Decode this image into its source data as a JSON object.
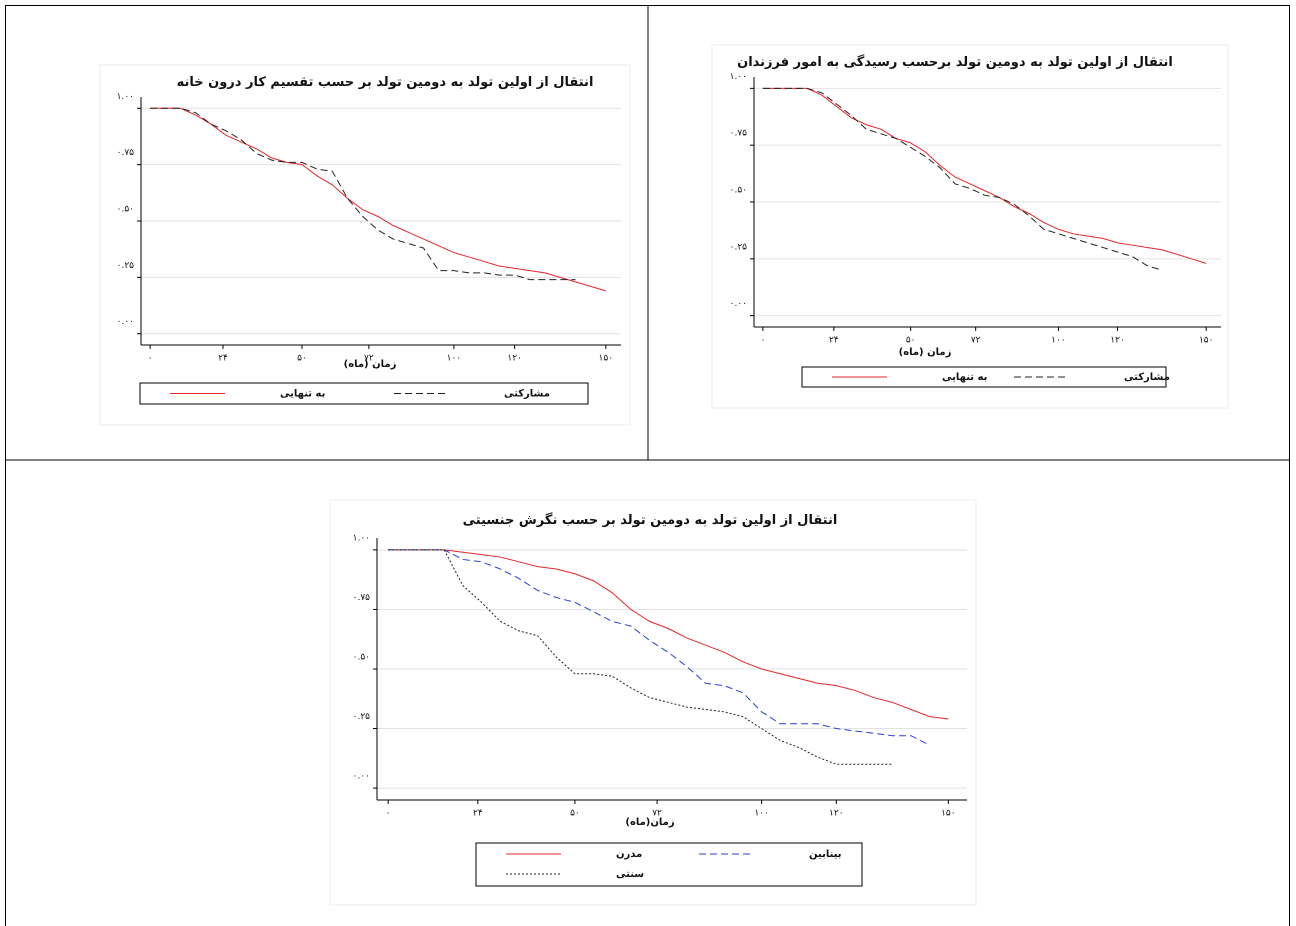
{
  "chart_data": [
    {
      "type": "line",
      "title": "انتقال از اولین تولد به دومین تولد بر حسب تقسیم کار درون خانه",
      "x_label": "زمان (ماه)",
      "x": [
        0,
        5,
        10,
        15,
        20,
        25,
        30,
        35,
        40,
        45,
        50,
        55,
        60,
        65,
        70,
        75,
        80,
        85,
        90,
        95,
        100,
        105,
        110,
        115,
        120,
        125,
        130,
        135,
        140,
        145,
        150
      ],
      "xlim": [
        -3,
        155
      ],
      "ylim": [
        -0.05,
        1.05
      ],
      "xticks": [
        {
          "value": 0,
          "label": "۰"
        },
        {
          "value": 24,
          "label": "۲۴"
        },
        {
          "value": 50,
          "label": "۵۰"
        },
        {
          "value": 72,
          "label": "۷۲"
        },
        {
          "value": 100,
          "label": "۱۰۰"
        },
        {
          "value": 120,
          "label": "۱۲۰"
        },
        {
          "value": 150,
          "label": "۱۵۰"
        }
      ],
      "yticks": [
        {
          "value": 0,
          "label": "۰.۰۰"
        },
        {
          "value": 0.25,
          "label": "۰.۲۵"
        },
        {
          "value": 0.5,
          "label": "۰.۵۰"
        },
        {
          "value": 0.75,
          "label": "۰.۷۵"
        },
        {
          "value": 1,
          "label": "۱.۰۰"
        }
      ],
      "grid": true,
      "series": [
        {
          "name": "به تنهایی",
          "color": "#e3262b",
          "dash": "solid",
          "values": [
            1,
            1,
            1,
            0.97,
            0.93,
            0.88,
            0.85,
            0.82,
            0.78,
            0.76,
            0.75,
            0.7,
            0.66,
            0.6,
            0.55,
            0.52,
            0.48,
            0.45,
            0.42,
            0.39,
            0.36,
            0.34,
            0.32,
            0.3,
            0.29,
            0.28,
            0.27,
            0.25,
            0.23,
            0.21,
            0.19
          ]
        },
        {
          "name": "مشارکتی",
          "color": "#222222",
          "dash": "dashed",
          "values": [
            1,
            1,
            1,
            0.98,
            0.93,
            0.9,
            0.86,
            0.8,
            0.77,
            0.76,
            0.76,
            0.73,
            0.72,
            0.6,
            0.52,
            0.46,
            0.42,
            0.4,
            0.38,
            0.28,
            0.28,
            0.27,
            0.27,
            0.26,
            0.26,
            0.24,
            0.24,
            0.24,
            0.24,
            null,
            null
          ]
        }
      ]
    },
    {
      "type": "line",
      "title": "انتقال از اولین تولد به دومین تولد برحسب رسیدگی به امور فرزندان",
      "x_label": "زمان (ماه)",
      "x": [
        0,
        5,
        10,
        15,
        20,
        25,
        30,
        35,
        40,
        45,
        50,
        55,
        60,
        65,
        70,
        75,
        80,
        85,
        90,
        95,
        100,
        105,
        110,
        115,
        120,
        125,
        130,
        135,
        140,
        145,
        150
      ],
      "xlim": [
        -3,
        155
      ],
      "ylim": [
        -0.05,
        1.05
      ],
      "xticks": [
        {
          "value": 0,
          "label": "۰"
        },
        {
          "value": 24,
          "label": "۲۴"
        },
        {
          "value": 50,
          "label": "۵۰"
        },
        {
          "value": 72,
          "label": "۷۲"
        },
        {
          "value": 100,
          "label": "۱۰۰"
        },
        {
          "value": 120,
          "label": "۱۲۰"
        },
        {
          "value": 150,
          "label": "۱۵۰"
        }
      ],
      "yticks": [
        {
          "value": 0,
          "label": "۰.۰۰"
        },
        {
          "value": 0.25,
          "label": "۰.۲۵"
        },
        {
          "value": 0.5,
          "label": "۰.۵۰"
        },
        {
          "value": 0.75,
          "label": "۰.۷۵"
        },
        {
          "value": 1,
          "label": "۱.۰۰"
        }
      ],
      "grid": true,
      "series": [
        {
          "name": "به تنهایی",
          "color": "#e3262b",
          "dash": "solid",
          "values": [
            1,
            1,
            1,
            1,
            0.97,
            0.92,
            0.87,
            0.84,
            0.82,
            0.78,
            0.76,
            0.72,
            0.66,
            0.61,
            0.58,
            0.55,
            0.52,
            0.48,
            0.45,
            0.41,
            0.38,
            0.36,
            0.35,
            0.34,
            0.32,
            0.31,
            0.3,
            0.29,
            0.27,
            0.25,
            0.23
          ]
        },
        {
          "name": "مشارکتی",
          "color": "#222222",
          "dash": "dashed",
          "values": [
            1,
            1,
            1,
            1,
            0.98,
            0.93,
            0.88,
            0.82,
            0.8,
            0.78,
            0.74,
            0.7,
            0.65,
            0.58,
            0.56,
            0.53,
            0.52,
            0.49,
            0.44,
            0.38,
            0.36,
            0.34,
            0.32,
            0.3,
            0.28,
            0.26,
            0.22,
            0.2,
            null,
            null,
            null
          ]
        }
      ]
    },
    {
      "type": "line",
      "title": "انتقال از اولین تولد به دومین تولد بر حسب نگرش جنسیتی",
      "x_label": "زمان(ماه)",
      "x": [
        0,
        5,
        10,
        15,
        20,
        25,
        30,
        35,
        40,
        45,
        50,
        55,
        60,
        65,
        70,
        75,
        80,
        85,
        90,
        95,
        100,
        105,
        110,
        115,
        120,
        125,
        130,
        135,
        140,
        145,
        150
      ],
      "xlim": [
        -3,
        155
      ],
      "ylim": [
        -0.05,
        1.05
      ],
      "xticks": [
        {
          "value": 0,
          "label": "۰"
        },
        {
          "value": 24,
          "label": "۲۴"
        },
        {
          "value": 50,
          "label": "۵۰"
        },
        {
          "value": 72,
          "label": "۷۲"
        },
        {
          "value": 100,
          "label": "۱۰۰"
        },
        {
          "value": 120,
          "label": "۱۲۰"
        },
        {
          "value": 150,
          "label": "۱۵۰"
        }
      ],
      "yticks": [
        {
          "value": 0,
          "label": "۰.۰۰"
        },
        {
          "value": 0.25,
          "label": "۰.۲۵"
        },
        {
          "value": 0.5,
          "label": "۰.۵۰"
        },
        {
          "value": 0.75,
          "label": "۰.۷۵"
        },
        {
          "value": 1,
          "label": "۱.۰۰"
        }
      ],
      "grid": true,
      "series": [
        {
          "name": "مدرن",
          "color": "#e3262b",
          "dash": "solid",
          "values": [
            1,
            1,
            1,
            1,
            0.99,
            0.98,
            0.97,
            0.95,
            0.93,
            0.92,
            0.9,
            0.87,
            0.82,
            0.75,
            0.7,
            0.67,
            0.63,
            0.6,
            0.57,
            0.53,
            0.5,
            0.48,
            0.46,
            0.44,
            0.43,
            0.41,
            0.38,
            0.36,
            0.33,
            0.3,
            0.29
          ]
        },
        {
          "name": "بینابین",
          "color": "#2a3fd6",
          "dash": "dashed",
          "values": [
            1,
            1,
            1,
            1,
            0.96,
            0.95,
            0.92,
            0.88,
            0.83,
            0.8,
            0.78,
            0.74,
            0.7,
            0.68,
            0.62,
            0.57,
            0.51,
            0.44,
            0.43,
            0.4,
            0.32,
            0.27,
            0.27,
            0.27,
            0.25,
            0.24,
            0.23,
            0.22,
            0.22,
            0.18,
            null
          ]
        },
        {
          "name": "سنتی",
          "color": "#222222",
          "dash": "dotted",
          "values": [
            1,
            1,
            1,
            1,
            0.85,
            0.78,
            0.7,
            0.66,
            0.64,
            0.55,
            0.48,
            0.48,
            0.47,
            0.42,
            0.38,
            0.36,
            0.34,
            0.33,
            0.32,
            0.3,
            0.25,
            0.2,
            0.17,
            0.13,
            0.1,
            0.1,
            0.1,
            0.1,
            null,
            null,
            null
          ]
        }
      ]
    }
  ]
}
